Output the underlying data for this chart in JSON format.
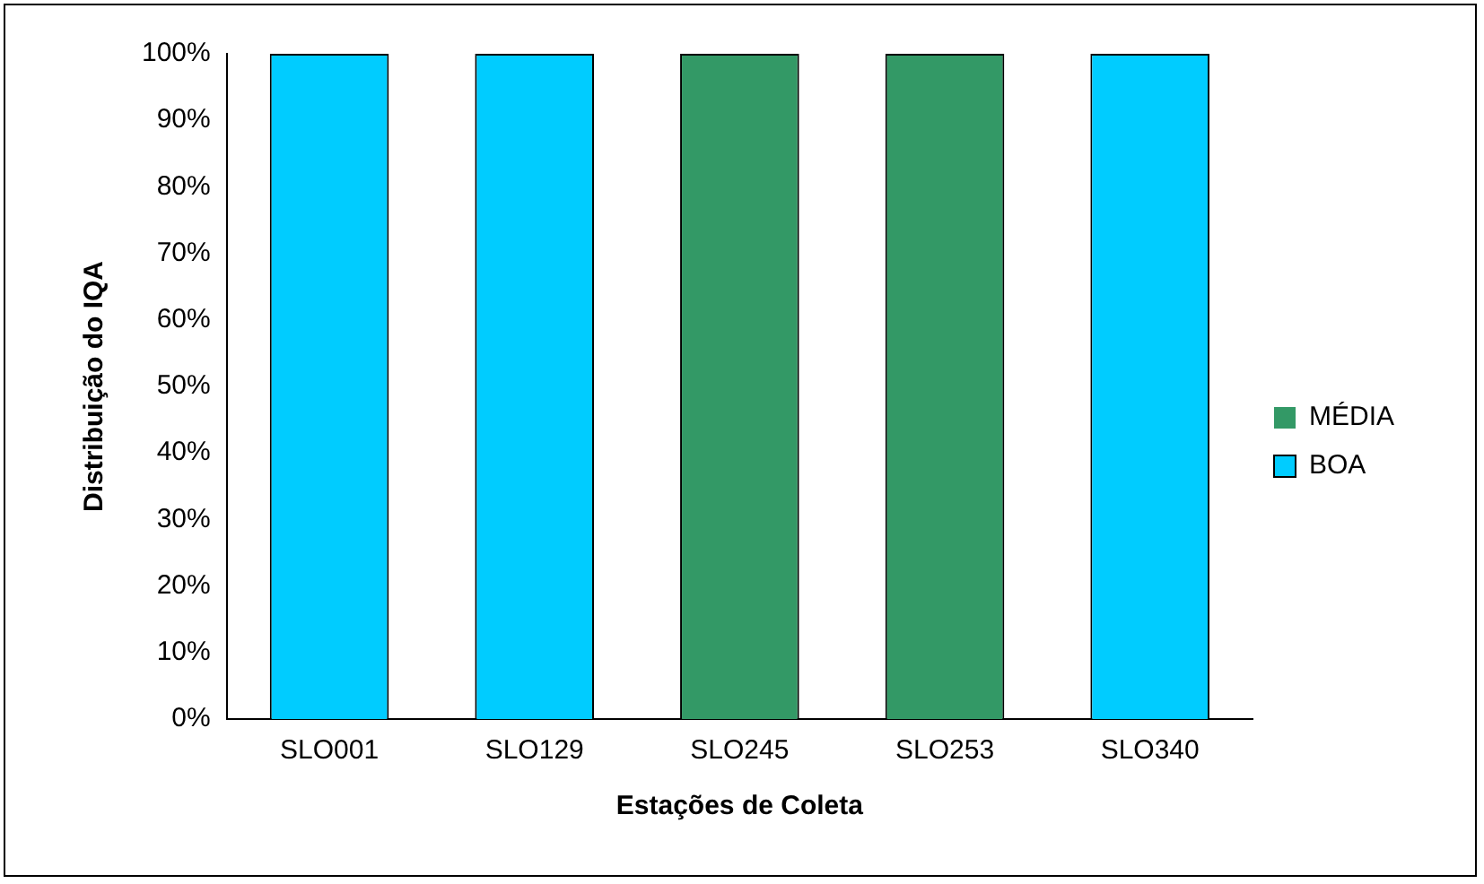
{
  "chart_data": {
    "type": "bar",
    "xlabel": "Estações de Coleta",
    "ylabel": "Distribuição do IQA",
    "categories": [
      "SLO001",
      "SLO129",
      "SLO245",
      "SLO253",
      "SLO340"
    ],
    "series": [
      {
        "name": "BOA",
        "color": "#00ccff",
        "values": [
          100,
          100,
          0,
          0,
          100
        ]
      },
      {
        "name": "MÉDIA",
        "color": "#339966",
        "values": [
          0,
          0,
          100,
          100,
          0
        ]
      }
    ],
    "stacked": true,
    "ylim": [
      0,
      100
    ],
    "yticks": [
      {
        "value": 0,
        "label": "0%"
      },
      {
        "value": 10,
        "label": "10%"
      },
      {
        "value": 20,
        "label": "20%"
      },
      {
        "value": 30,
        "label": "30%"
      },
      {
        "value": 40,
        "label": "40%"
      },
      {
        "value": 50,
        "label": "50%"
      },
      {
        "value": 60,
        "label": "60%"
      },
      {
        "value": 70,
        "label": "70%"
      },
      {
        "value": 80,
        "label": "80%"
      },
      {
        "value": 90,
        "label": "90%"
      },
      {
        "value": 100,
        "label": "100%"
      }
    ],
    "grid": false,
    "legend": "right"
  }
}
